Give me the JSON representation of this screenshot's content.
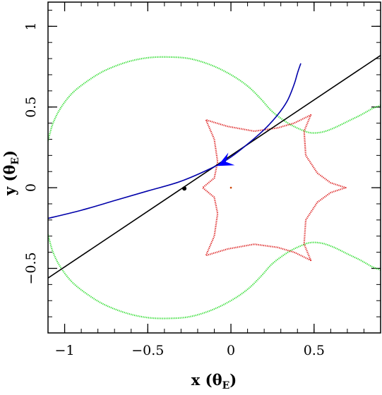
{
  "chart_data": {
    "type": "line",
    "xlabel": "x (θ_E)",
    "xlabel_main": "x (θ",
    "xlabel_sub": "E",
    "xlabel_close": ")",
    "ylabel": "y (θ_E)",
    "ylabel_main": "y (θ",
    "ylabel_sub": "E",
    "ylabel_close": ")",
    "xlim": [
      -1.1,
      0.9
    ],
    "ylim": [
      -0.9,
      1.15
    ],
    "xticks": [
      {
        "value": -1,
        "label": "−1"
      },
      {
        "value": -0.5,
        "label": "−0.5"
      },
      {
        "value": 0,
        "label": "0"
      },
      {
        "value": 0.5,
        "label": "0.5"
      }
    ],
    "yticks": [
      {
        "value": -0.5,
        "label": "−0.5"
      },
      {
        "value": 0,
        "label": "0"
      },
      {
        "value": 0.5,
        "label": "0.5"
      },
      {
        "value": 1,
        "label": "1"
      }
    ],
    "x_minor_step": 0.1,
    "y_minor_step": 0.1,
    "grid": false,
    "colors": {
      "caustic": "#dd2222",
      "critical_curve": "#33dd33",
      "source_trajectory": "#000000",
      "image_track": "#0000aa",
      "arrow": "#0000ff",
      "lens_mass": "#cc4400"
    },
    "series": [
      {
        "key": "critical_upper",
        "style": "dotted",
        "color": "#33dd33",
        "points": [
          [
            -1.1,
            0.29
          ],
          [
            -1.07,
            0.4
          ],
          [
            -1.02,
            0.5
          ],
          [
            -0.95,
            0.59
          ],
          [
            -0.85,
            0.67
          ],
          [
            -0.75,
            0.73
          ],
          [
            -0.62,
            0.78
          ],
          [
            -0.5,
            0.805
          ],
          [
            -0.38,
            0.81
          ],
          [
            -0.25,
            0.8
          ],
          [
            -0.12,
            0.76
          ],
          [
            0.0,
            0.7
          ],
          [
            0.1,
            0.63
          ],
          [
            0.18,
            0.55
          ],
          [
            0.24,
            0.48
          ],
          [
            0.3,
            0.43
          ],
          [
            0.36,
            0.39
          ],
          [
            0.42,
            0.36
          ],
          [
            0.48,
            0.34
          ],
          [
            0.55,
            0.345
          ],
          [
            0.62,
            0.37
          ],
          [
            0.7,
            0.41
          ],
          [
            0.78,
            0.45
          ],
          [
            0.85,
            0.49
          ],
          [
            0.9,
            0.51
          ]
        ]
      },
      {
        "key": "critical_lower",
        "style": "dotted",
        "color": "#33dd33",
        "points": [
          [
            -1.1,
            -0.29
          ],
          [
            -1.07,
            -0.4
          ],
          [
            -1.02,
            -0.5
          ],
          [
            -0.95,
            -0.59
          ],
          [
            -0.85,
            -0.67
          ],
          [
            -0.75,
            -0.73
          ],
          [
            -0.62,
            -0.78
          ],
          [
            -0.5,
            -0.805
          ],
          [
            -0.38,
            -0.81
          ],
          [
            -0.25,
            -0.8
          ],
          [
            -0.12,
            -0.76
          ],
          [
            0.0,
            -0.7
          ],
          [
            0.1,
            -0.63
          ],
          [
            0.18,
            -0.55
          ],
          [
            0.24,
            -0.48
          ],
          [
            0.3,
            -0.43
          ],
          [
            0.36,
            -0.39
          ],
          [
            0.42,
            -0.36
          ],
          [
            0.48,
            -0.34
          ],
          [
            0.55,
            -0.345
          ],
          [
            0.62,
            -0.37
          ],
          [
            0.7,
            -0.41
          ],
          [
            0.78,
            -0.45
          ],
          [
            0.85,
            -0.49
          ],
          [
            0.9,
            -0.51
          ]
        ]
      },
      {
        "key": "caustic",
        "style": "dotted",
        "color": "#dd2222",
        "points": [
          [
            -0.15,
            0.42
          ],
          [
            -0.1,
            0.3
          ],
          [
            -0.08,
            0.16
          ],
          [
            -0.1,
            0.06
          ],
          [
            -0.17,
            0.0
          ],
          [
            -0.1,
            -0.06
          ],
          [
            -0.08,
            -0.16
          ],
          [
            -0.1,
            -0.3
          ],
          [
            -0.15,
            -0.42
          ],
          [
            -0.02,
            -0.38
          ],
          [
            0.14,
            -0.35
          ],
          [
            0.28,
            -0.37
          ],
          [
            0.38,
            -0.4
          ],
          [
            0.48,
            -0.45
          ],
          [
            0.44,
            -0.35
          ],
          [
            0.45,
            -0.2
          ],
          [
            0.52,
            -0.09
          ],
          [
            0.6,
            -0.03
          ],
          [
            0.69,
            0.0
          ],
          [
            0.6,
            0.03
          ],
          [
            0.52,
            0.09
          ],
          [
            0.45,
            0.2
          ],
          [
            0.44,
            0.35
          ],
          [
            0.48,
            0.45
          ],
          [
            0.38,
            0.4
          ],
          [
            0.28,
            0.37
          ],
          [
            0.14,
            0.35
          ],
          [
            -0.02,
            0.38
          ],
          [
            -0.15,
            0.42
          ]
        ]
      },
      {
        "key": "source_trajectory",
        "style": "solid",
        "color": "#000000",
        "points": [
          [
            -1.1,
            -0.56
          ],
          [
            0.9,
            0.82
          ]
        ]
      },
      {
        "key": "image_track",
        "style": "solid",
        "color": "#0000aa",
        "points": [
          [
            -1.1,
            -0.19
          ],
          [
            -0.9,
            -0.14
          ],
          [
            -0.7,
            -0.08
          ],
          [
            -0.5,
            -0.02
          ],
          [
            -0.3,
            0.04
          ],
          [
            -0.1,
            0.13
          ],
          [
            0.0,
            0.19
          ],
          [
            0.1,
            0.27
          ],
          [
            0.2,
            0.36
          ],
          [
            0.28,
            0.45
          ],
          [
            0.34,
            0.54
          ],
          [
            0.38,
            0.64
          ],
          [
            0.4,
            0.71
          ],
          [
            0.42,
            0.77
          ]
        ]
      }
    ],
    "markers": [
      {
        "key": "source_point",
        "x": -0.28,
        "y": -0.005,
        "color": "#000000"
      },
      {
        "key": "lens_center",
        "x": 0.0,
        "y": 0.0,
        "color": "#cc4400"
      }
    ],
    "arrow": {
      "tip": [
        -0.08,
        0.135
      ],
      "direction": [
        -1,
        -0.5
      ],
      "color": "#0000ff"
    }
  }
}
